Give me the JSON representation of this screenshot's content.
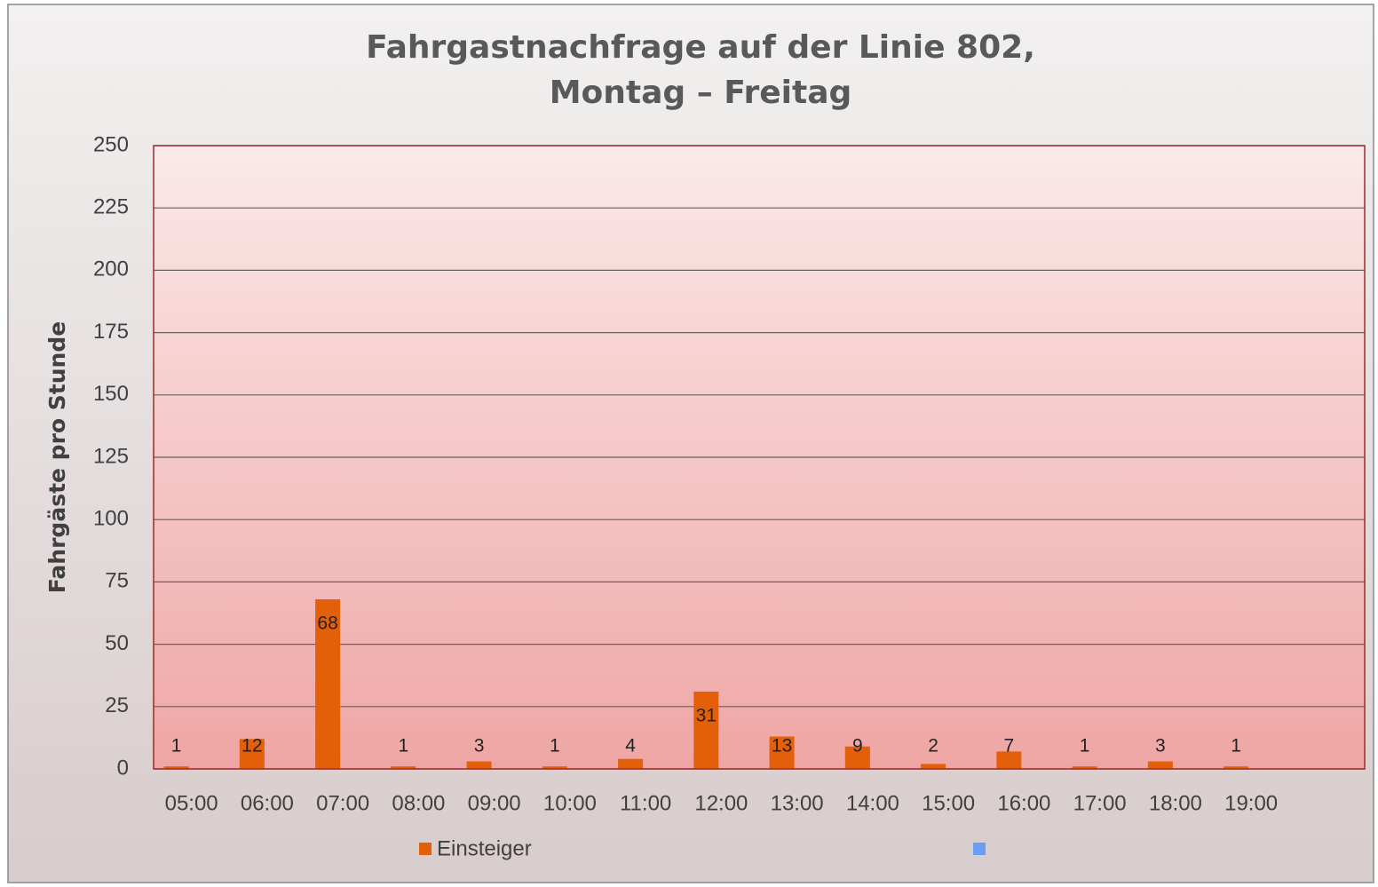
{
  "chart_data": {
    "type": "bar",
    "title": [
      "Fahrgastnachfrage auf der Linie 802,",
      "Montag – Freitag"
    ],
    "y_axis_label": "Fahrgäste pro Stunde",
    "categories": [
      "05:00",
      "06:00",
      "07:00",
      "08:00",
      "09:00",
      "10:00",
      "11:00",
      "12:00",
      "13:00",
      "14:00",
      "15:00",
      "16:00",
      "17:00",
      "18:00",
      "19:00",
      null
    ],
    "series": [
      {
        "name": "Einsteiger",
        "color": "#e35f0a",
        "values": [
          1,
          12,
          68,
          1,
          3,
          1,
          4,
          31,
          13,
          9,
          2,
          7,
          1,
          3,
          1,
          null
        ]
      },
      {
        "name": null,
        "color": "#6a9ef5",
        "values": [
          null,
          null,
          null,
          null,
          null,
          null,
          null,
          null,
          null,
          null,
          null,
          null,
          null,
          null,
          null,
          null
        ]
      }
    ],
    "ylim": [
      0,
      250
    ],
    "yticks": [
      0,
      25,
      50,
      75,
      100,
      125,
      150,
      175,
      200,
      225,
      250
    ],
    "grid": true,
    "legend": "bottom",
    "data_labels": true
  }
}
